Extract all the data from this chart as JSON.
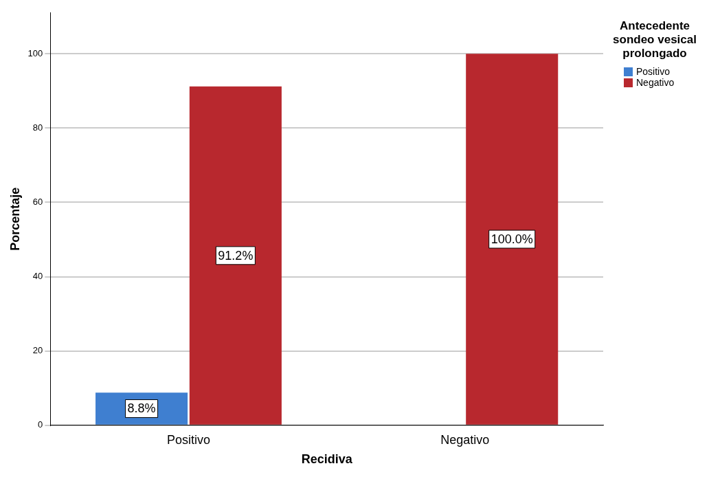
{
  "chart_data": {
    "type": "bar",
    "xlabel": "Recidiva",
    "ylabel": "Porcentaje",
    "legend_title": "Antecedente sondeo vesical prolongado",
    "categories": [
      "Positivo",
      "Negativo"
    ],
    "series": [
      {
        "name": "Positivo",
        "color": "#3f7fd0",
        "values": [
          8.8,
          null
        ],
        "value_labels": [
          "8.8%",
          null
        ]
      },
      {
        "name": "Negativo",
        "color": "#b8282e",
        "values": [
          91.2,
          100
        ],
        "value_labels": [
          "91.2%",
          "100.0%"
        ]
      }
    ],
    "ylim": [
      0,
      111
    ],
    "yticks": [
      0,
      20,
      40,
      60,
      80,
      100
    ],
    "grid": "y",
    "legend": "top right"
  }
}
